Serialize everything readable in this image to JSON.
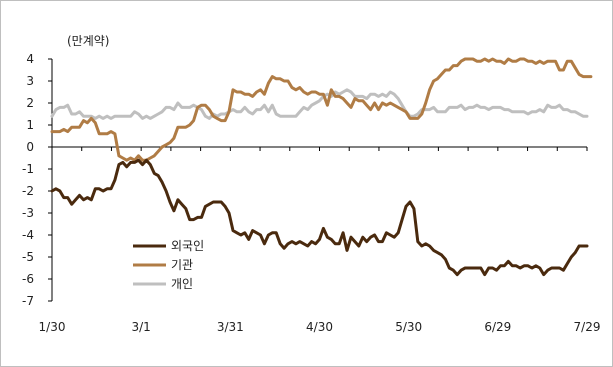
{
  "chart_data": {
    "type": "line",
    "unit_label": "(만계약)",
    "ylim": [
      -7,
      4
    ],
    "y_ticks": [
      "4",
      "3",
      "2",
      "1",
      "0",
      "-1",
      "-2",
      "-3",
      "-4",
      "-5",
      "-6",
      "-7"
    ],
    "x_tick_labels": [
      "1/30",
      "3/1",
      "3/31",
      "4/30",
      "5/30",
      "6/29",
      "7/29"
    ],
    "legend_position": "center-left",
    "grid": false,
    "series": [
      {
        "name": "외국인",
        "color": "#4a2a0e",
        "values": [
          -2.0,
          -1.9,
          -2.0,
          -2.3,
          -2.3,
          -2.6,
          -2.4,
          -2.2,
          -2.4,
          -2.3,
          -2.4,
          -1.9,
          -1.9,
          -2.0,
          -1.9,
          -1.9,
          -1.5,
          -0.8,
          -0.7,
          -0.9,
          -0.7,
          -0.7,
          -0.6,
          -0.8,
          -0.6,
          -0.8,
          -1.2,
          -1.3,
          -1.6,
          -2.0,
          -2.5,
          -2.9,
          -2.4,
          -2.6,
          -2.8,
          -3.3,
          -3.3,
          -3.2,
          -3.2,
          -2.7,
          -2.6,
          -2.5,
          -2.5,
          -2.5,
          -2.7,
          -3.0,
          -3.8,
          -3.9,
          -4.0,
          -3.9,
          -4.2,
          -3.8,
          -3.9,
          -4.0,
          -4.4,
          -4.0,
          -3.9,
          -3.9,
          -4.4,
          -4.6,
          -4.4,
          -4.3,
          -4.4,
          -4.3,
          -4.4,
          -4.5,
          -4.3,
          -4.4,
          -4.2,
          -3.7,
          -4.1,
          -4.2,
          -4.4,
          -4.4,
          -3.9,
          -4.7,
          -4.1,
          -4.3,
          -4.5,
          -4.1,
          -4.3,
          -4.1,
          -4.0,
          -4.3,
          -4.3,
          -3.9,
          -4.0,
          -4.1,
          -3.9,
          -3.3,
          -2.7,
          -2.5,
          -2.8,
          -4.3,
          -4.5,
          -4.4,
          -4.5,
          -4.7,
          -4.8,
          -4.9,
          -5.1,
          -5.5,
          -5.6,
          -5.8,
          -5.6,
          -5.5,
          -5.5,
          -5.5,
          -5.5,
          -5.5,
          -5.8,
          -5.5,
          -5.5,
          -5.6,
          -5.4,
          -5.4,
          -5.2,
          -5.4,
          -5.4,
          -5.5,
          -5.4,
          -5.4,
          -5.5,
          -5.4,
          -5.5,
          -5.8,
          -5.6,
          -5.5,
          -5.5,
          -5.5,
          -5.6,
          -5.3,
          -5.0,
          -4.8,
          -4.5,
          -4.5,
          -4.5
        ]
      },
      {
        "name": "기관",
        "color": "#b07c45",
        "values": [
          0.7,
          0.7,
          0.7,
          0.8,
          0.7,
          0.9,
          0.9,
          0.9,
          1.2,
          1.1,
          1.3,
          1.1,
          0.6,
          0.6,
          0.6,
          0.7,
          0.6,
          -0.4,
          -0.5,
          -0.6,
          -0.5,
          -0.6,
          -0.4,
          -0.6,
          -0.6,
          -0.5,
          -0.4,
          -0.2,
          0.0,
          0.1,
          0.2,
          0.4,
          0.9,
          0.9,
          0.9,
          1.0,
          1.2,
          1.8,
          1.9,
          1.9,
          1.7,
          1.4,
          1.3,
          1.2,
          1.2,
          1.6,
          2.6,
          2.5,
          2.5,
          2.4,
          2.4,
          2.3,
          2.5,
          2.6,
          2.4,
          2.9,
          3.2,
          3.1,
          3.1,
          3.0,
          3.0,
          2.7,
          2.6,
          2.7,
          2.5,
          2.4,
          2.5,
          2.5,
          2.4,
          2.4,
          1.9,
          2.6,
          2.3,
          2.3,
          2.2,
          2.0,
          1.8,
          2.2,
          2.1,
          2.1,
          1.9,
          1.7,
          2.0,
          1.7,
          2.0,
          1.9,
          2.0,
          1.9,
          1.8,
          1.7,
          1.6,
          1.3,
          1.3,
          1.3,
          1.5,
          2.0,
          2.6,
          3.0,
          3.1,
          3.3,
          3.5,
          3.5,
          3.7,
          3.7,
          3.9,
          4.0,
          4.0,
          4.0,
          3.9,
          3.9,
          4.0,
          3.9,
          4.0,
          3.9,
          3.9,
          3.8,
          4.0,
          3.9,
          3.9,
          4.0,
          4.0,
          3.9,
          3.9,
          3.8,
          3.9,
          3.8,
          3.9,
          3.9,
          3.9,
          3.5,
          3.5,
          3.9,
          3.9,
          3.6,
          3.3,
          3.2,
          3.2,
          3.2
        ]
      },
      {
        "name": "개인",
        "color": "#bfbfbf",
        "values": [
          1.4,
          1.7,
          1.8,
          1.8,
          1.9,
          1.5,
          1.5,
          1.6,
          1.4,
          1.4,
          1.4,
          1.3,
          1.4,
          1.3,
          1.4,
          1.3,
          1.4,
          1.4,
          1.4,
          1.4,
          1.4,
          1.6,
          1.5,
          1.3,
          1.4,
          1.3,
          1.4,
          1.5,
          1.6,
          1.8,
          1.8,
          1.7,
          2.0,
          1.8,
          1.8,
          1.8,
          1.9,
          1.8,
          1.7,
          1.4,
          1.3,
          1.5,
          1.4,
          1.5,
          1.5,
          1.6,
          1.7,
          1.6,
          1.6,
          1.8,
          1.6,
          1.5,
          1.7,
          1.7,
          1.9,
          1.6,
          1.9,
          1.5,
          1.4,
          1.4,
          1.4,
          1.4,
          1.4,
          1.6,
          1.8,
          1.7,
          1.9,
          2.0,
          2.1,
          2.3,
          2.4,
          2.3,
          2.5,
          2.4,
          2.5,
          2.6,
          2.5,
          2.3,
          2.3,
          2.3,
          2.2,
          2.4,
          2.4,
          2.3,
          2.4,
          2.3,
          2.5,
          2.4,
          2.2,
          1.9,
          1.6,
          1.4,
          1.4,
          1.5,
          1.7,
          1.7,
          1.7,
          1.8,
          1.6,
          1.6,
          1.6,
          1.8,
          1.8,
          1.8,
          1.9,
          1.7,
          1.8,
          1.8,
          1.9,
          1.8,
          1.8,
          1.7,
          1.8,
          1.8,
          1.8,
          1.7,
          1.7,
          1.6,
          1.6,
          1.6,
          1.6,
          1.5,
          1.6,
          1.6,
          1.7,
          1.6,
          1.9,
          1.8,
          1.8,
          1.9,
          1.7,
          1.7,
          1.6,
          1.6,
          1.5,
          1.4,
          1.4
        ]
      }
    ]
  }
}
